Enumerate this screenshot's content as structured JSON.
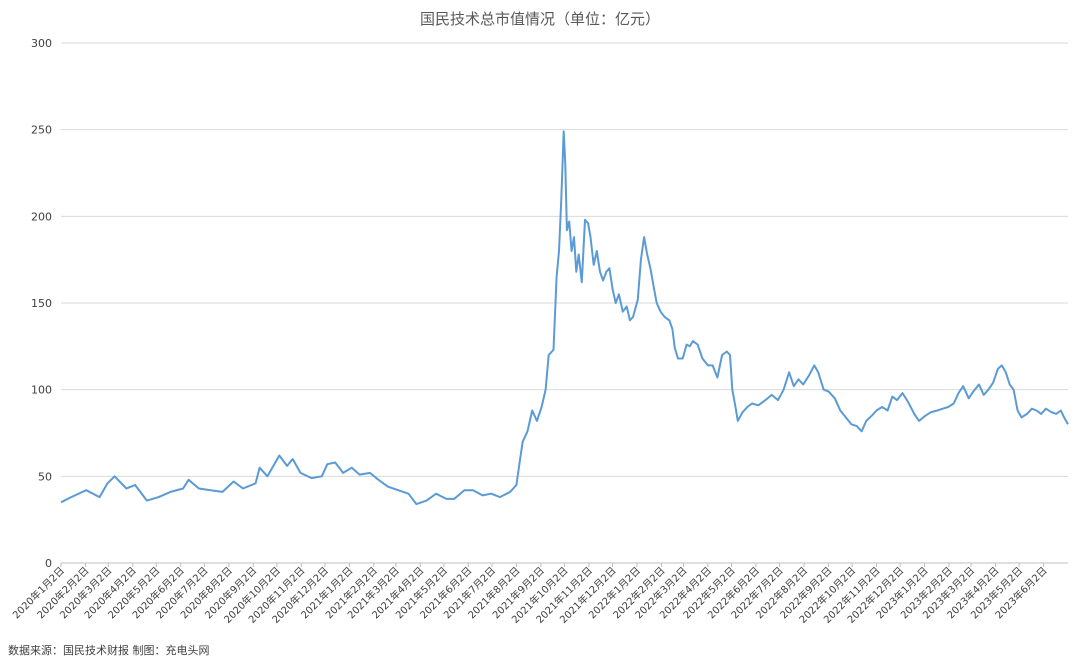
{
  "chart_data": {
    "type": "line",
    "title": "国民技术总市值情况（单位：亿元）",
    "xlabel": "",
    "ylabel": "",
    "ylim": [
      0,
      300
    ],
    "yticks": [
      "0",
      "50",
      "100",
      "150",
      "200",
      "250",
      "300"
    ],
    "grid": true,
    "legend": "none",
    "line_color": "#5b9bd5",
    "x_tick_labels": [
      "2020年1月2日",
      "2020年2月2日",
      "2020年3月2日",
      "2020年4月2日",
      "2020年5月2日",
      "2020年6月2日",
      "2020年7月2日",
      "2020年8月2日",
      "2020年9月2日",
      "2020年10月2日",
      "2020年11月2日",
      "2020年12月2日",
      "2021年1月2日",
      "2021年2月2日",
      "2021年3月2日",
      "2021年4月2日",
      "2021年5月2日",
      "2021年6月2日",
      "2021年7月2日",
      "2021年8月2日",
      "2021年9月2日",
      "2021年10月2日",
      "2021年11月2日",
      "2021年12月2日",
      "2022年1月2日",
      "2022年2月2日",
      "2022年3月2日",
      "2022年4月2日",
      "2022年5月2日",
      "2022年6月2日",
      "2022年7月2日",
      "2022年8月2日",
      "2022年9月2日",
      "2022年10月2日",
      "2022年11月2日",
      "2022年12月2日",
      "2023年1月2日",
      "2023年2月2日",
      "2023年3月2日",
      "2023年4月2日",
      "2023年5月2日",
      "2023年6月2日"
    ],
    "series": [
      {
        "points": [
          [
            "2020-01-02",
            35
          ],
          [
            "2020-01-15",
            38
          ],
          [
            "2020-02-03",
            42
          ],
          [
            "2020-02-20",
            38
          ],
          [
            "2020-03-01",
            46
          ],
          [
            "2020-03-10",
            50
          ],
          [
            "2020-03-25",
            43
          ],
          [
            "2020-04-05",
            45
          ],
          [
            "2020-04-20",
            36
          ],
          [
            "2020-05-05",
            38
          ],
          [
            "2020-05-20",
            41
          ],
          [
            "2020-06-05",
            43
          ],
          [
            "2020-06-12",
            48
          ],
          [
            "2020-06-25",
            43
          ],
          [
            "2020-07-10",
            42
          ],
          [
            "2020-07-25",
            41
          ],
          [
            "2020-08-08",
            47
          ],
          [
            "2020-08-20",
            43
          ],
          [
            "2020-09-05",
            46
          ],
          [
            "2020-09-10",
            55
          ],
          [
            "2020-09-20",
            50
          ],
          [
            "2020-09-30",
            58
          ],
          [
            "2020-10-05",
            62
          ],
          [
            "2020-10-15",
            56
          ],
          [
            "2020-10-22",
            60
          ],
          [
            "2020-11-01",
            52
          ],
          [
            "2020-11-15",
            49
          ],
          [
            "2020-11-28",
            50
          ],
          [
            "2020-12-05",
            57
          ],
          [
            "2020-12-15",
            58
          ],
          [
            "2020-12-25",
            52
          ],
          [
            "2021-01-05",
            55
          ],
          [
            "2021-01-15",
            51
          ],
          [
            "2021-01-28",
            52
          ],
          [
            "2021-02-08",
            48
          ],
          [
            "2021-02-20",
            44
          ],
          [
            "2021-03-05",
            42
          ],
          [
            "2021-03-18",
            40
          ],
          [
            "2021-03-28",
            34
          ],
          [
            "2021-04-10",
            36
          ],
          [
            "2021-04-22",
            40
          ],
          [
            "2021-05-05",
            37
          ],
          [
            "2021-05-15",
            37
          ],
          [
            "2021-05-28",
            42
          ],
          [
            "2021-06-08",
            42
          ],
          [
            "2021-06-20",
            39
          ],
          [
            "2021-07-01",
            40
          ],
          [
            "2021-07-12",
            38
          ],
          [
            "2021-07-25",
            41
          ],
          [
            "2021-08-02",
            45
          ],
          [
            "2021-08-06",
            58
          ],
          [
            "2021-08-10",
            70
          ],
          [
            "2021-08-16",
            76
          ],
          [
            "2021-08-22",
            88
          ],
          [
            "2021-08-28",
            82
          ],
          [
            "2021-09-03",
            90
          ],
          [
            "2021-09-08",
            100
          ],
          [
            "2021-09-12",
            120
          ],
          [
            "2021-09-18",
            123
          ],
          [
            "2021-09-22",
            165
          ],
          [
            "2021-09-25",
            180
          ],
          [
            "2021-09-28",
            210
          ],
          [
            "2021-10-01",
            249
          ],
          [
            "2021-10-03",
            230
          ],
          [
            "2021-10-05",
            192
          ],
          [
            "2021-10-08",
            197
          ],
          [
            "2021-10-11",
            180
          ],
          [
            "2021-10-14",
            188
          ],
          [
            "2021-10-17",
            168
          ],
          [
            "2021-10-20",
            178
          ],
          [
            "2021-10-24",
            162
          ],
          [
            "2021-10-28",
            198
          ],
          [
            "2021-11-01",
            196
          ],
          [
            "2021-11-04",
            188
          ],
          [
            "2021-11-08",
            172
          ],
          [
            "2021-11-12",
            180
          ],
          [
            "2021-11-16",
            168
          ],
          [
            "2021-11-20",
            163
          ],
          [
            "2021-11-24",
            168
          ],
          [
            "2021-11-28",
            170
          ],
          [
            "2021-12-02",
            158
          ],
          [
            "2021-12-06",
            150
          ],
          [
            "2021-12-10",
            155
          ],
          [
            "2021-12-15",
            145
          ],
          [
            "2021-12-20",
            148
          ],
          [
            "2021-12-24",
            140
          ],
          [
            "2021-12-28",
            142
          ],
          [
            "2022-01-03",
            152
          ],
          [
            "2022-01-07",
            175
          ],
          [
            "2022-01-11",
            188
          ],
          [
            "2022-01-15",
            178
          ],
          [
            "2022-01-19",
            170
          ],
          [
            "2022-01-23",
            160
          ],
          [
            "2022-01-27",
            150
          ],
          [
            "2022-02-01",
            145
          ],
          [
            "2022-02-06",
            142
          ],
          [
            "2022-02-12",
            140
          ],
          [
            "2022-02-16",
            135
          ],
          [
            "2022-02-19",
            124
          ],
          [
            "2022-02-23",
            118
          ],
          [
            "2022-03-01",
            118
          ],
          [
            "2022-03-06",
            126
          ],
          [
            "2022-03-10",
            125
          ],
          [
            "2022-03-14",
            128
          ],
          [
            "2022-03-20",
            126
          ],
          [
            "2022-03-26",
            118
          ],
          [
            "2022-04-02",
            114
          ],
          [
            "2022-04-08",
            114
          ],
          [
            "2022-04-14",
            107
          ],
          [
            "2022-04-20",
            120
          ],
          [
            "2022-04-26",
            122
          ],
          [
            "2022-04-30",
            120
          ],
          [
            "2022-05-03",
            100
          ],
          [
            "2022-05-07",
            90
          ],
          [
            "2022-05-10",
            82
          ],
          [
            "2022-05-16",
            87
          ],
          [
            "2022-05-22",
            90
          ],
          [
            "2022-05-28",
            92
          ],
          [
            "2022-06-05",
            91
          ],
          [
            "2022-06-14",
            94
          ],
          [
            "2022-06-22",
            97
          ],
          [
            "2022-06-30",
            94
          ],
          [
            "2022-07-07",
            100
          ],
          [
            "2022-07-14",
            110
          ],
          [
            "2022-07-20",
            102
          ],
          [
            "2022-07-26",
            106
          ],
          [
            "2022-08-01",
            103
          ],
          [
            "2022-08-08",
            108
          ],
          [
            "2022-08-15",
            114
          ],
          [
            "2022-08-20",
            110
          ],
          [
            "2022-08-27",
            100
          ],
          [
            "2022-09-02",
            99
          ],
          [
            "2022-09-10",
            95
          ],
          [
            "2022-09-17",
            88
          ],
          [
            "2022-09-24",
            84
          ],
          [
            "2022-10-01",
            80
          ],
          [
            "2022-10-08",
            79
          ],
          [
            "2022-10-14",
            76
          ],
          [
            "2022-10-20",
            82
          ],
          [
            "2022-10-27",
            85
          ],
          [
            "2022-11-02",
            88
          ],
          [
            "2022-11-09",
            90
          ],
          [
            "2022-11-16",
            88
          ],
          [
            "2022-11-22",
            96
          ],
          [
            "2022-11-28",
            94
          ],
          [
            "2022-12-05",
            98
          ],
          [
            "2022-12-12",
            93
          ],
          [
            "2022-12-20",
            86
          ],
          [
            "2022-12-26",
            82
          ],
          [
            "2023-01-03",
            85
          ],
          [
            "2023-01-10",
            87
          ],
          [
            "2023-01-18",
            88
          ],
          [
            "2023-01-25",
            89
          ],
          [
            "2023-02-01",
            90
          ],
          [
            "2023-02-08",
            92
          ],
          [
            "2023-02-14",
            98
          ],
          [
            "2023-02-20",
            102
          ],
          [
            "2023-02-27",
            95
          ],
          [
            "2023-03-05",
            99
          ],
          [
            "2023-03-12",
            103
          ],
          [
            "2023-03-18",
            97
          ],
          [
            "2023-03-24",
            100
          ],
          [
            "2023-03-30",
            104
          ],
          [
            "2023-04-05",
            112
          ],
          [
            "2023-04-10",
            114
          ],
          [
            "2023-04-15",
            110
          ],
          [
            "2023-04-20",
            103
          ],
          [
            "2023-04-25",
            100
          ],
          [
            "2023-04-30",
            88
          ],
          [
            "2023-05-05",
            84
          ],
          [
            "2023-05-12",
            86
          ],
          [
            "2023-05-18",
            89
          ],
          [
            "2023-05-24",
            88
          ],
          [
            "2023-05-30",
            86
          ],
          [
            "2023-06-05",
            89
          ],
          [
            "2023-06-12",
            87
          ],
          [
            "2023-06-18",
            86
          ],
          [
            "2023-06-24",
            88
          ],
          [
            "2023-06-28",
            84
          ],
          [
            "2023-07-03",
            80
          ]
        ]
      }
    ]
  },
  "footer": {
    "source": "数据来源：国民技术财报 制图：充电头网"
  }
}
